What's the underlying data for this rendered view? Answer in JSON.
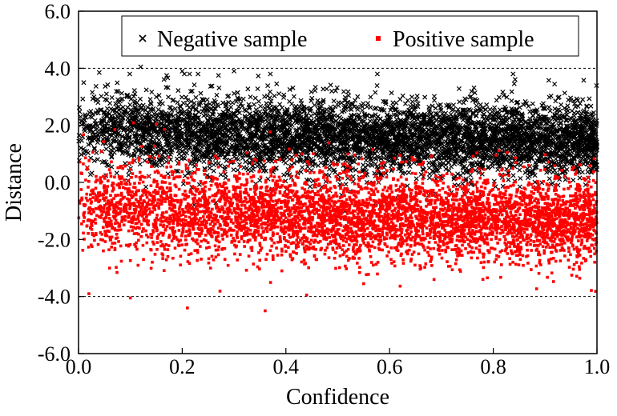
{
  "chart_data": {
    "type": "scatter",
    "title": "",
    "xlabel": "Confidence",
    "ylabel": "Distance",
    "xlim": [
      0.0,
      1.0
    ],
    "ylim": [
      -6.0,
      6.0
    ],
    "xticks": [
      "0.0",
      "0.2",
      "0.4",
      "0.6",
      "0.8",
      "1.0"
    ],
    "yticks": [
      "6.0",
      "4.0",
      "2.0",
      "0.0",
      "-2.0",
      "-4.0",
      "-6.0"
    ],
    "reference_lines": [
      4.0,
      -4.0
    ],
    "legend_position": "top",
    "series": [
      {
        "name": "Negative sample",
        "marker": "x",
        "color": "#000000",
        "trend": [
          {
            "x": 0.0,
            "y": 1.85
          },
          {
            "x": 0.5,
            "y": 1.6
          },
          {
            "x": 1.0,
            "y": 1.45
          }
        ],
        "spread": 0.65,
        "count": 5200,
        "outliers": [
          {
            "x": 0.12,
            "y": 4.05
          },
          {
            "x": 0.17,
            "y": 3.75
          },
          {
            "x": 0.3,
            "y": 3.9
          },
          {
            "x": 0.37,
            "y": 3.8
          },
          {
            "x": 0.04,
            "y": 3.85
          },
          {
            "x": 0.01,
            "y": 3.5
          },
          {
            "x": 0.2,
            "y": 3.9
          },
          {
            "x": 0.27,
            "y": 3.75
          }
        ]
      },
      {
        "name": "Positive sample",
        "marker": "square",
        "color": "#ff0000",
        "trend": [
          {
            "x": 0.0,
            "y": -0.85
          },
          {
            "x": 0.5,
            "y": -1.2
          },
          {
            "x": 1.0,
            "y": -1.35
          }
        ],
        "spread": 0.75,
        "count": 5200,
        "outliers": [
          {
            "x": 0.36,
            "y": -4.5
          },
          {
            "x": 0.21,
            "y": -4.4
          },
          {
            "x": 0.1,
            "y": -4.05
          },
          {
            "x": 0.44,
            "y": -3.95
          },
          {
            "x": 0.02,
            "y": -3.9
          },
          {
            "x": 0.55,
            "y": -3.55
          },
          {
            "x": 0.78,
            "y": -3.4
          },
          {
            "x": 0.15,
            "y": 2.05
          },
          {
            "x": 0.07,
            "y": 1.85
          }
        ]
      }
    ]
  }
}
